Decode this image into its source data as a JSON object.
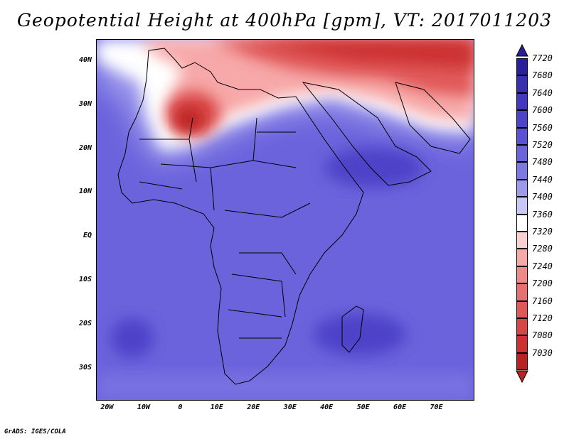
{
  "title": "Geopotential Height at 400hPa [gpm], VT: 2017011203",
  "credit": "GrADS: IGES/COLA",
  "map": {
    "lon_range": [
      -23,
      80
    ],
    "lat_range": [
      -37,
      45
    ],
    "lat_ticks": [
      {
        "value": 40,
        "label": "40N"
      },
      {
        "value": 30,
        "label": "30N"
      },
      {
        "value": 20,
        "label": "20N"
      },
      {
        "value": 10,
        "label": "10N"
      },
      {
        "value": 0,
        "label": "EQ"
      },
      {
        "value": -10,
        "label": "10S"
      },
      {
        "value": -20,
        "label": "20S"
      },
      {
        "value": -30,
        "label": "30S"
      }
    ],
    "lon_ticks": [
      {
        "value": -20,
        "label": "20W"
      },
      {
        "value": -10,
        "label": "10W"
      },
      {
        "value": 0,
        "label": "0"
      },
      {
        "value": 10,
        "label": "10E"
      },
      {
        "value": 20,
        "label": "20E"
      },
      {
        "value": 30,
        "label": "30E"
      },
      {
        "value": 40,
        "label": "40E"
      },
      {
        "value": 50,
        "label": "50E"
      },
      {
        "value": 60,
        "label": "60E"
      },
      {
        "value": 70,
        "label": "70E"
      }
    ]
  },
  "legend": {
    "levels": [
      {
        "label": "7720",
        "color": "#2b1f9c"
      },
      {
        "label": "7680",
        "color": "#3a2fb0"
      },
      {
        "label": "7640",
        "color": "#4438c0"
      },
      {
        "label": "7600",
        "color": "#4d43c8"
      },
      {
        "label": "7560",
        "color": "#5a52d4"
      },
      {
        "label": "7520",
        "color": "#6a63dc"
      },
      {
        "label": "7480",
        "color": "#7e78e4"
      },
      {
        "label": "7440",
        "color": "#9d99ec"
      },
      {
        "label": "7400",
        "color": "#c9c7f5"
      },
      {
        "label": "7360",
        "color": "#ffffff"
      },
      {
        "label": "7320",
        "color": "#fbd0d0"
      },
      {
        "label": "7280",
        "color": "#f7a8a8"
      },
      {
        "label": "7240",
        "color": "#f08a8a"
      },
      {
        "label": "7200",
        "color": "#e86f6f"
      },
      {
        "label": "7160",
        "color": "#e05858"
      },
      {
        "label": "7120",
        "color": "#d94444"
      },
      {
        "label": "7080",
        "color": "#cc3030"
      },
      {
        "label": "7030",
        "color": "#b82222"
      }
    ]
  }
}
